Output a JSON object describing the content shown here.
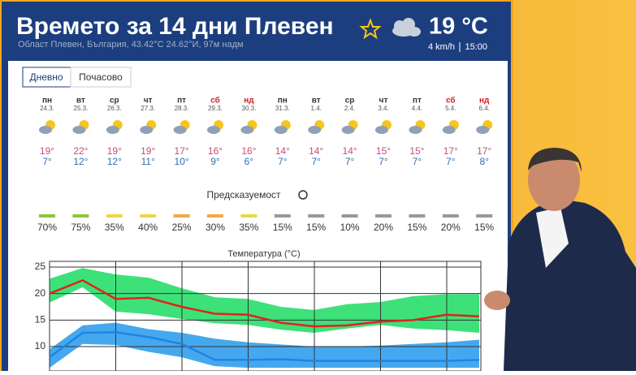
{
  "header": {
    "title": "Времето за 14 дни Плевен",
    "current_temp": "19 °C",
    "location": "Област Плевен, България, 43.42°C 24.62°И, 97м надм",
    "wind": "4 km/h",
    "time": "15:00"
  },
  "tabs": [
    "Дневно",
    "Почасово"
  ],
  "days": [
    {
      "day": "пн",
      "date": "24.3.",
      "high": "19°",
      "low": "7°",
      "weekend": false
    },
    {
      "day": "вт",
      "date": "25.3.",
      "high": "22°",
      "low": "12°",
      "weekend": false
    },
    {
      "day": "ср",
      "date": "26.3.",
      "high": "19°",
      "low": "12°",
      "weekend": false
    },
    {
      "day": "чт",
      "date": "27.3.",
      "high": "19°",
      "low": "11°",
      "weekend": false
    },
    {
      "day": "пт",
      "date": "28.3.",
      "high": "17°",
      "low": "10°",
      "weekend": false
    },
    {
      "day": "сб",
      "date": "29.3.",
      "high": "16°",
      "low": "9°",
      "weekend": true
    },
    {
      "day": "нд",
      "date": "30.3.",
      "high": "16°",
      "low": "6°",
      "weekend": true
    },
    {
      "day": "пн",
      "date": "31.3.",
      "high": "14°",
      "low": "7°",
      "weekend": false
    },
    {
      "day": "вт",
      "date": "1.4.",
      "high": "14°",
      "low": "7°",
      "weekend": false
    },
    {
      "day": "ср",
      "date": "2.4.",
      "high": "14°",
      "low": "7°",
      "weekend": false
    },
    {
      "day": "чт",
      "date": "3.4.",
      "high": "15°",
      "low": "7°",
      "weekend": false
    },
    {
      "day": "пт",
      "date": "4.4.",
      "high": "15°",
      "low": "7°",
      "weekend": false
    },
    {
      "day": "сб",
      "date": "5.4.",
      "high": "17°",
      "low": "7°",
      "weekend": true
    },
    {
      "day": "нд",
      "date": "6.4.",
      "high": "17°",
      "low": "8°",
      "weekend": true
    }
  ],
  "predictability": {
    "title": "Предсказуемост",
    "values": [
      "70%",
      "75%",
      "35%",
      "40%",
      "25%",
      "30%",
      "35%",
      "15%",
      "15%",
      "10%",
      "20%",
      "15%",
      "20%",
      "15%"
    ],
    "colors": [
      "#8cc63f",
      "#8cc63f",
      "#e8d84a",
      "#e8d84a",
      "#f0a848",
      "#f0a848",
      "#e8d84a",
      "#999999",
      "#999999",
      "#999999",
      "#999999",
      "#999999",
      "#999999",
      "#999999"
    ]
  },
  "chart_data": {
    "type": "line",
    "title": "Температура (°C)",
    "ylim": [
      6,
      25
    ],
    "yticks": [
      10,
      15,
      20,
      25
    ],
    "grid": true,
    "bands": [
      {
        "color": "#3ee07a",
        "upper": [
          22.8,
          24.8,
          23.6,
          23,
          21,
          19.3,
          19,
          17.5,
          16.9,
          18,
          18.4,
          19.5,
          19.9,
          19.9
        ],
        "lower": [
          18.3,
          21.2,
          16.6,
          16.1,
          15.2,
          14.4,
          14.1,
          13.2,
          12.6,
          13.4,
          14.1,
          13.4,
          13.1,
          12.6
        ]
      },
      {
        "color": "#45a8ee",
        "upper": [
          9.5,
          14,
          14.5,
          13.3,
          12.6,
          11.5,
          10.8,
          10.4,
          10,
          10,
          10.2,
          10.5,
          10.8,
          11.3
        ],
        "lower": [
          6,
          10.5,
          10.3,
          9,
          8,
          6.3,
          6,
          6,
          6,
          6,
          6,
          6,
          6,
          6
        ]
      }
    ],
    "series": [
      {
        "color": "#e0231b",
        "values": [
          20,
          22.5,
          19,
          19.2,
          17.5,
          16.2,
          16,
          14.5,
          13.8,
          14,
          14.7,
          15,
          16,
          15.7
        ]
      },
      {
        "color": "#1e84e8",
        "values": [
          8,
          12.6,
          12.7,
          11.8,
          10.5,
          7.5,
          7.5,
          7.6,
          7.3,
          7.3,
          7.3,
          7.3,
          7.3,
          7.5
        ]
      }
    ]
  }
}
